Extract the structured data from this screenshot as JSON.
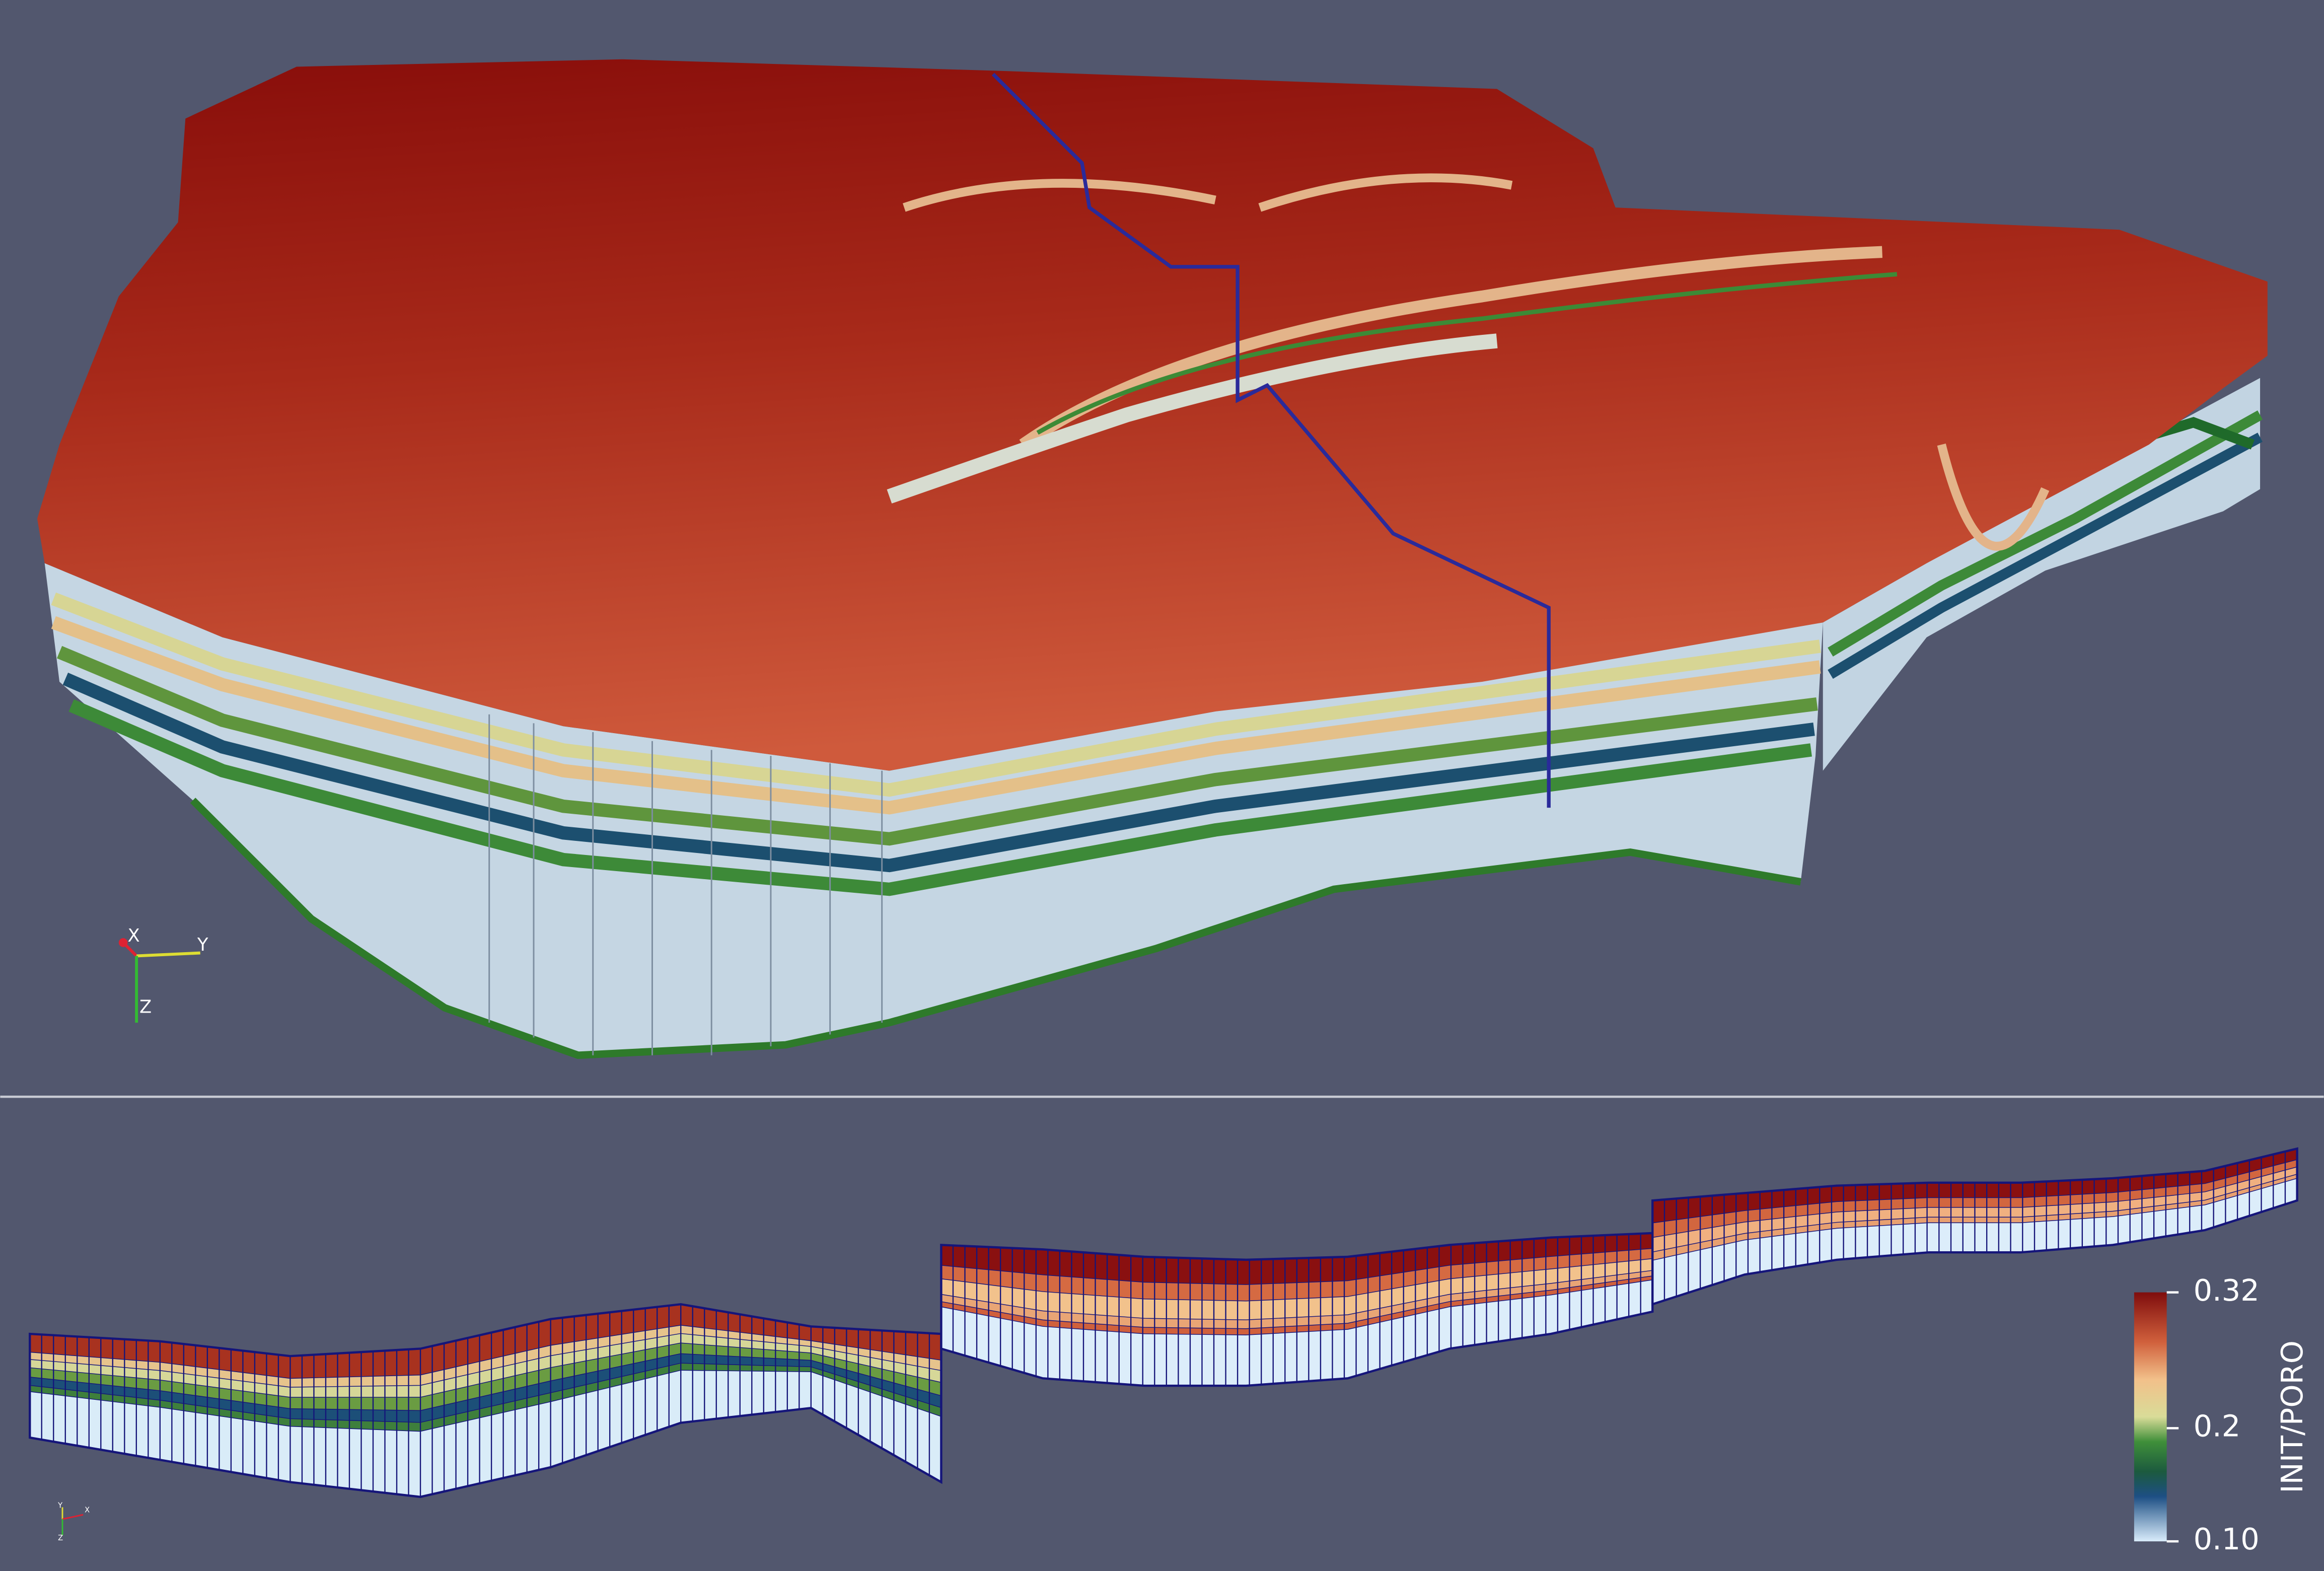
{
  "top_view": {
    "axes": {
      "x": "X",
      "y": "Y",
      "z": "Z"
    }
  },
  "bottom_view": {
    "axes": {
      "x": "X",
      "y": "Y",
      "z": "Z"
    },
    "colorbar": {
      "title": "INIT/PORO",
      "range": [
        0.1,
        0.32
      ],
      "ticks": [
        {
          "value": 0.32,
          "label": "0.32"
        },
        0.2,
        {
          "value": 0.1,
          "label": "0.10"
        }
      ]
    }
  }
}
